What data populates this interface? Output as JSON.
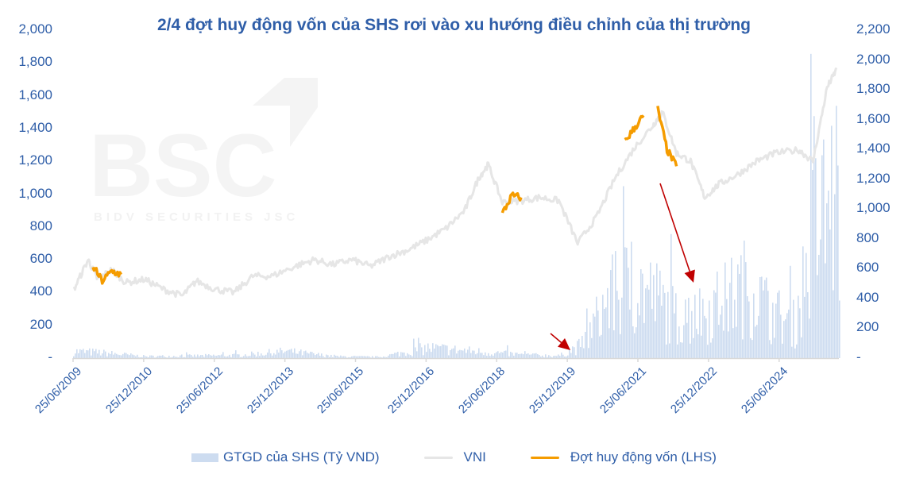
{
  "chart_data": {
    "type": "combo",
    "title": "2/4 đợt huy động vốn của SHS rơi vào xu hướng điều chỉnh của thị trường",
    "watermark": {
      "logo": "BSC",
      "subtitle": "BIDV SECURITIES JSC"
    },
    "left_axis": {
      "ticks": [
        "2,000",
        "1,800",
        "1,600",
        "1,400",
        "1,200",
        "1,000",
        "800",
        "600",
        "400",
        "200",
        "-"
      ],
      "range": [
        0,
        2000
      ],
      "label": ""
    },
    "right_axis": {
      "ticks": [
        "2,200",
        "2,000",
        "1,800",
        "1,600",
        "1,400",
        "1,200",
        "1,000",
        "800",
        "600",
        "400",
        "200",
        "-"
      ],
      "range": [
        0,
        2200
      ],
      "label": ""
    },
    "x_axis": {
      "ticks": [
        "25/06/2009",
        "25/12/2010",
        "25/06/2012",
        "25/12/2013",
        "25/06/2015",
        "25/12/2016",
        "25/06/2018",
        "25/12/2019",
        "25/06/2021",
        "25/12/2022",
        "25/06/2024"
      ],
      "range": [
        "25/06/2009",
        "2025"
      ]
    },
    "legend": [
      {
        "label": "GTGD của SHS (Tỷ VND)",
        "type": "area",
        "color": "#cddcf0"
      },
      {
        "label": "VNI",
        "type": "line",
        "color": "#e6e6e6"
      },
      {
        "label": "Đợt huy động vốn (LHS)",
        "type": "line",
        "color": "#f59c00"
      }
    ],
    "series": [
      {
        "name": "VNI",
        "axis": "left",
        "x": [
          2009.5,
          2009.8,
          2010.0,
          2010.3,
          2010.6,
          2011.0,
          2011.4,
          2011.8,
          2012.1,
          2012.5,
          2012.9,
          2013.3,
          2013.7,
          2014.2,
          2014.6,
          2015.0,
          2015.4,
          2015.8,
          2016.2,
          2016.6,
          2017.0,
          2017.4,
          2017.8,
          2018.1,
          2018.3,
          2018.6,
          2019.0,
          2019.4,
          2019.8,
          2020.2,
          2020.6,
          2021.0,
          2021.4,
          2021.8,
          2022.0,
          2022.3,
          2022.6,
          2022.9,
          2023.2,
          2023.6,
          2024.0,
          2024.4,
          2024.9,
          2025.2,
          2025.5,
          2025.7
        ],
        "values": [
          420,
          600,
          480,
          540,
          460,
          480,
          420,
          380,
          470,
          420,
          400,
          500,
          500,
          560,
          600,
          570,
          600,
          560,
          620,
          660,
          720,
          790,
          900,
          1100,
          1180,
          950,
          960,
          980,
          960,
          700,
          860,
          1100,
          1280,
          1420,
          1500,
          1250,
          1200,
          980,
          1060,
          1120,
          1200,
          1250,
          1270,
          1200,
          1650,
          1760
        ]
      },
      {
        "name": "Đợt huy động vốn (LHS)",
        "axis": "left",
        "segments": [
          {
            "x": [
              2009.9,
              2010.1,
              2010.3,
              2010.5
            ],
            "values": [
              560,
              470,
              530,
              510
            ]
          },
          {
            "x": [
              2018.6,
              2018.8,
              2019.0
            ],
            "values": [
              880,
              990,
              980
            ]
          },
          {
            "x": [
              2021.2,
              2021.4,
              2021.6
            ],
            "values": [
              1320,
              1400,
              1480
            ]
          },
          {
            "x": [
              2021.9,
              2022.1,
              2022.3
            ],
            "values": [
              1520,
              1270,
              1170
            ]
          }
        ]
      },
      {
        "name": "GTGD của SHS (Tỷ VND)",
        "axis": "right",
        "x": [
          2009.5,
          2010.0,
          2011.0,
          2012.0,
          2013.0,
          2014.0,
          2015.0,
          2016.0,
          2017.0,
          2018.0,
          2019.0,
          2019.8,
          2020.3,
          2020.8,
          2021.3,
          2021.8,
          2022.3,
          2022.8,
          2023.3,
          2023.8,
          2024.3,
          2024.8,
          2025.2,
          2025.6
        ],
        "values": [
          60,
          50,
          15,
          20,
          25,
          60,
          15,
          10,
          90,
          60,
          30,
          20,
          120,
          500,
          650,
          550,
          350,
          400,
          500,
          650,
          400,
          300,
          1100,
          1400
        ]
      }
    ],
    "annotations": [
      {
        "type": "arrow",
        "color": "#c00000",
        "from": [
          693,
          420
        ],
        "to": [
          718,
          441
        ]
      },
      {
        "type": "arrow",
        "color": "#c00000",
        "from": [
          831,
          231
        ],
        "to": [
          873,
          356
        ]
      }
    ]
  }
}
